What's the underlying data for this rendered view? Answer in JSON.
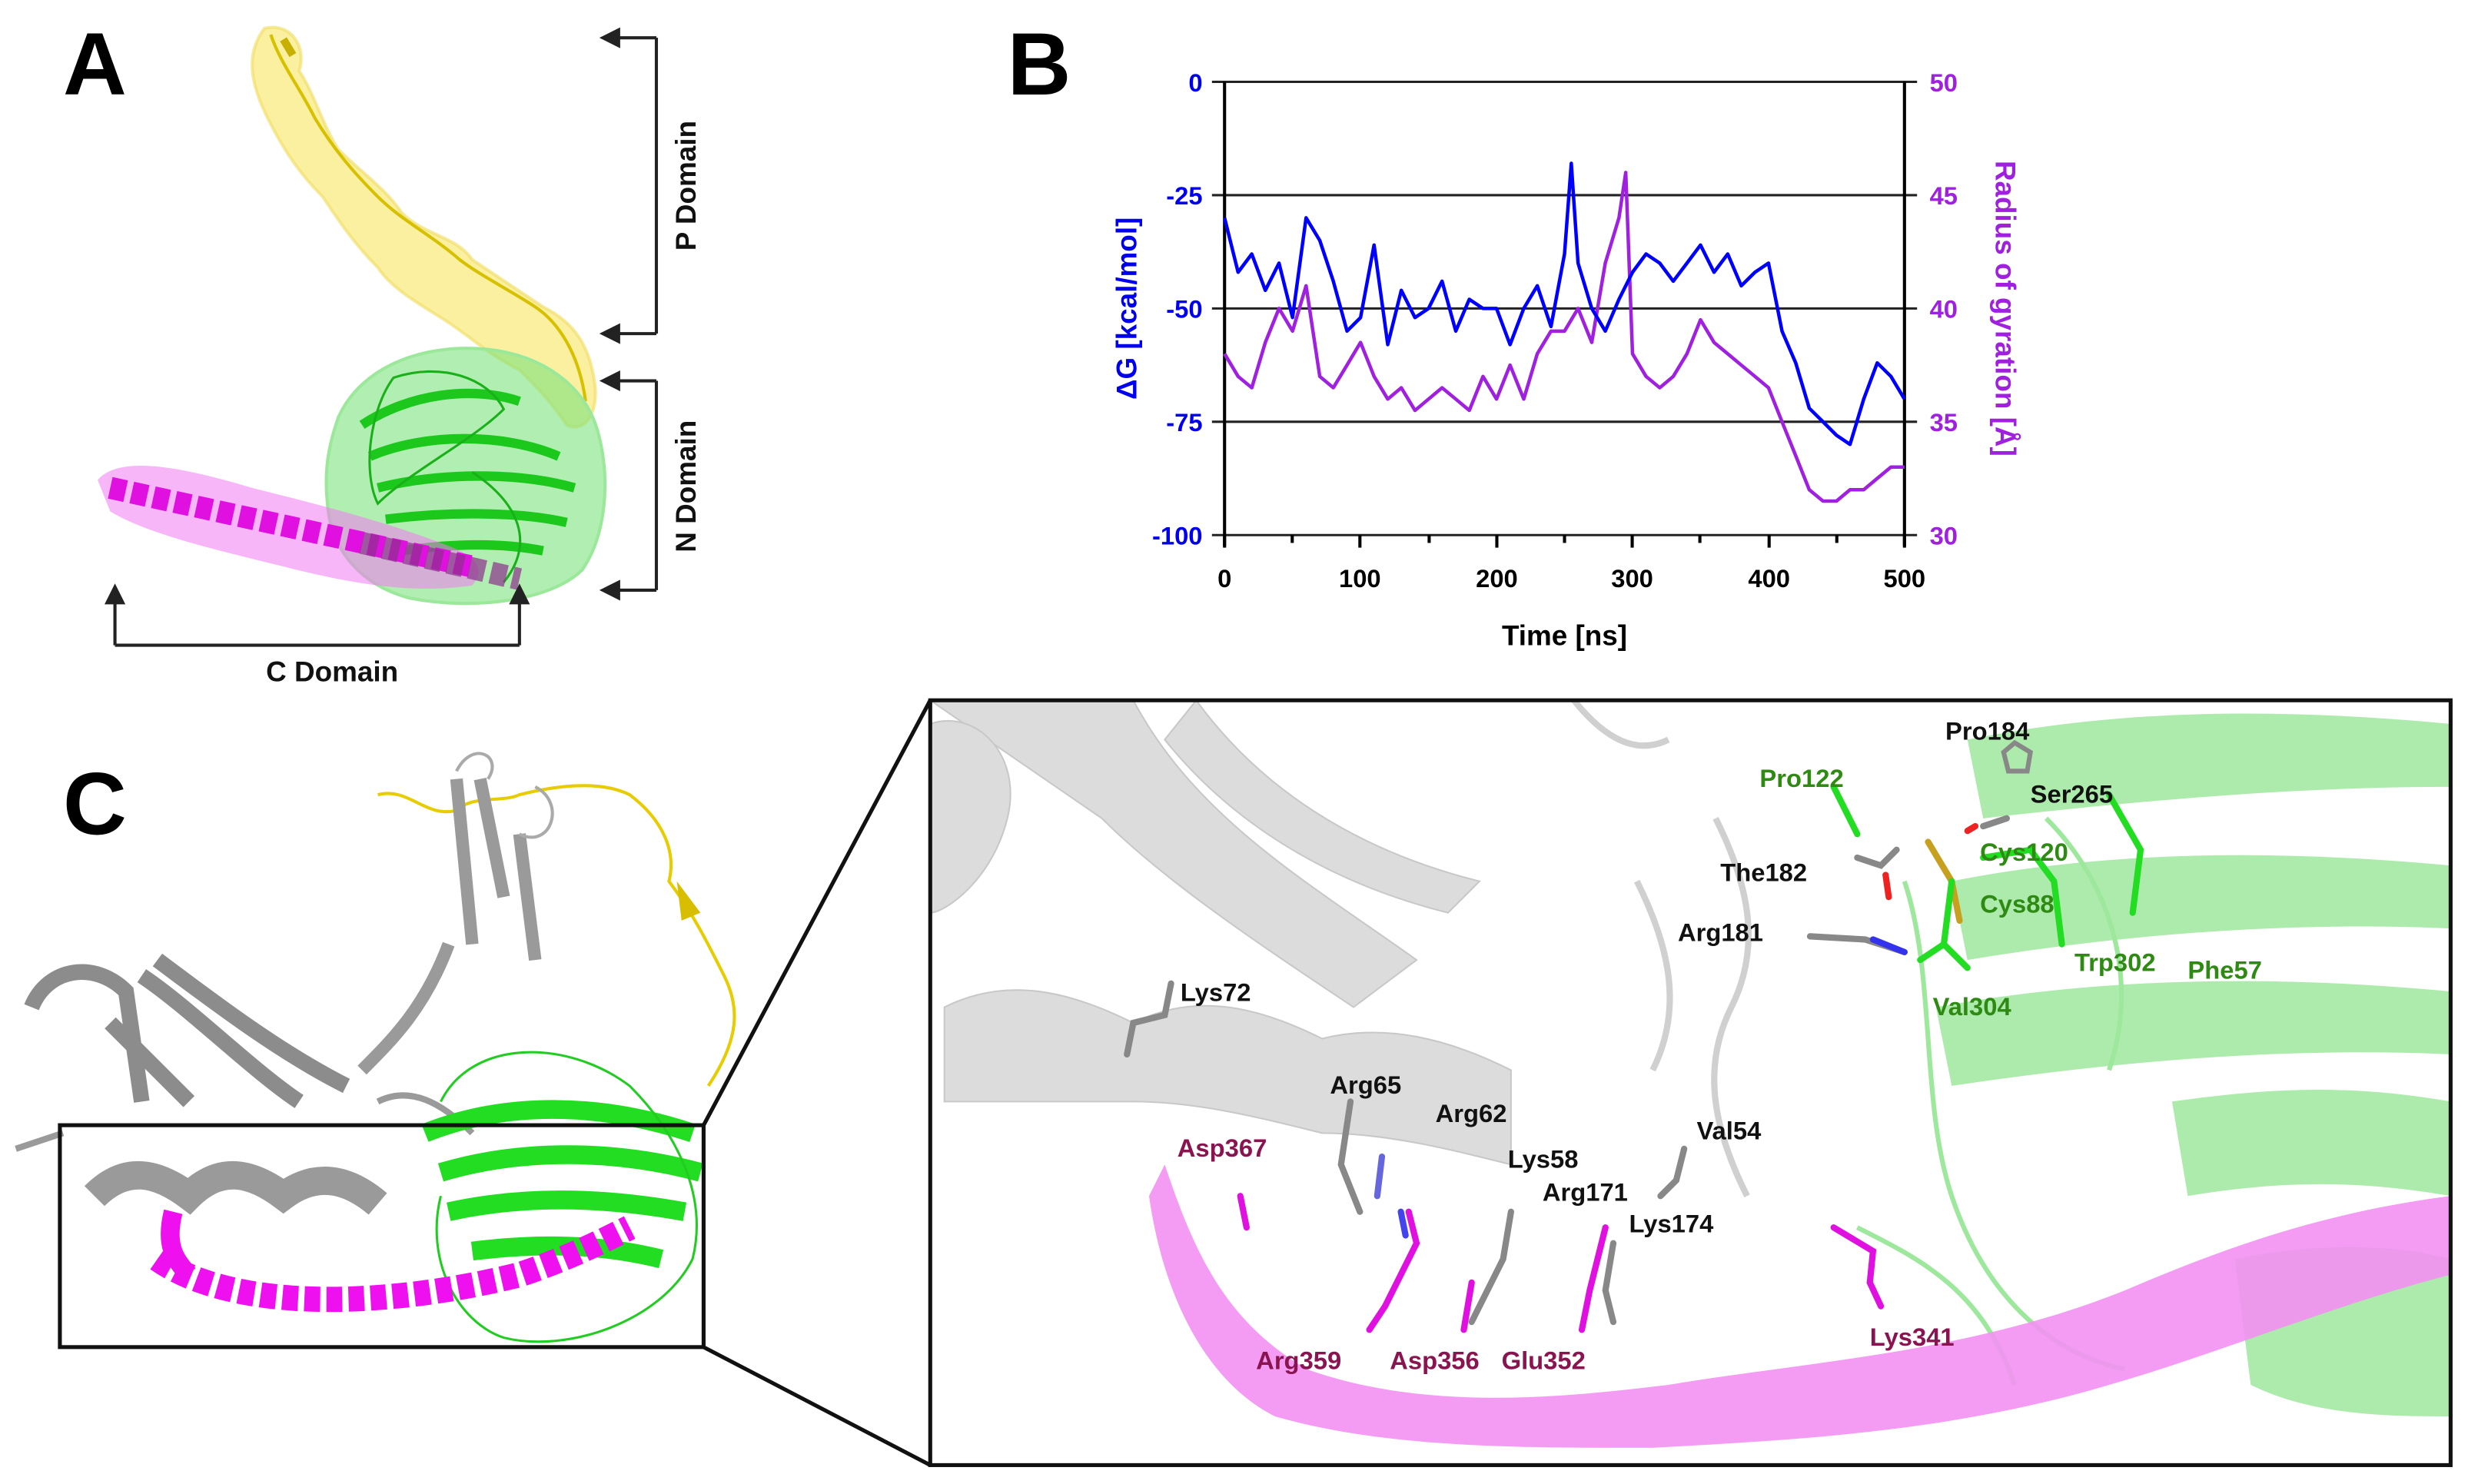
{
  "figure": {
    "panels": {
      "A": {
        "letter": "A",
        "domain_labels": {
          "p": "P Domain",
          "n": "N Domain",
          "c": "C Domain"
        }
      },
      "B": {
        "letter": "B"
      },
      "C": {
        "letter": "C",
        "residues": {
          "black": [
            "Pro184",
            "Ser265",
            "The182",
            "Arg181",
            "Lys72",
            "Arg65",
            "Arg62",
            "Val54",
            "Lys58",
            "Arg171",
            "Lys174"
          ],
          "green": [
            "Pro122",
            "Cys120",
            "Cys88",
            "Trp302",
            "Phe57",
            "Val304"
          ],
          "magenta": [
            "Asp367",
            "Arg359",
            "Asp356",
            "Glu352",
            "Lys341"
          ]
        }
      }
    },
    "colors": {
      "p_domain": "#f5e142",
      "n_domain": "#2ee02e",
      "c_domain": "#ee10ee",
      "other_chain": "#9a9a9a",
      "dG_line": "#0000ff",
      "rg_line": "#a020e0",
      "res_black": "#111111",
      "res_green": "#2e8a12",
      "res_magenta": "#8a1450"
    }
  },
  "chart_data": {
    "type": "line",
    "title": "",
    "xlabel": "Time [ns]",
    "ylabel": "ΔG [kcal/mol]",
    "y2label": "Radius of gyration [Å]",
    "xlim": [
      0,
      500
    ],
    "ylim": [
      -100,
      0
    ],
    "y2lim": [
      30,
      50
    ],
    "xticks": [
      0,
      100,
      200,
      300,
      400,
      500
    ],
    "yticks": [
      0,
      -25,
      -50,
      -75,
      -100
    ],
    "y2ticks": [
      50,
      45,
      40,
      35,
      30
    ],
    "grid": "horizontal at y-ticks",
    "legend": "none (axis colors identify series)",
    "series": [
      {
        "name": "ΔG",
        "axis": "left",
        "color": "#0000ff",
        "x": [
          0,
          10,
          20,
          30,
          40,
          50,
          60,
          70,
          80,
          90,
          100,
          110,
          120,
          130,
          140,
          150,
          160,
          170,
          180,
          190,
          200,
          210,
          220,
          230,
          240,
          250,
          255,
          260,
          270,
          280,
          290,
          300,
          310,
          320,
          330,
          340,
          350,
          360,
          370,
          380,
          390,
          400,
          410,
          420,
          430,
          440,
          450,
          460,
          470,
          480,
          490,
          500
        ],
        "values": [
          -30,
          -42,
          -38,
          -46,
          -40,
          -52,
          -30,
          -35,
          -44,
          -55,
          -52,
          -36,
          -58,
          -46,
          -52,
          -50,
          -44,
          -55,
          -48,
          -50,
          -50,
          -58,
          -50,
          -45,
          -54,
          -38,
          -18,
          -40,
          -50,
          -55,
          -48,
          -42,
          -38,
          -40,
          -44,
          -40,
          -36,
          -42,
          -38,
          -45,
          -42,
          -40,
          -55,
          -62,
          -72,
          -75,
          -78,
          -80,
          -70,
          -62,
          -65,
          -70
        ]
      },
      {
        "name": "Radius of gyration",
        "axis": "right",
        "color": "#a020e0",
        "x": [
          0,
          10,
          20,
          30,
          40,
          50,
          60,
          70,
          80,
          90,
          100,
          110,
          120,
          130,
          140,
          150,
          160,
          170,
          180,
          190,
          200,
          210,
          220,
          230,
          240,
          250,
          260,
          270,
          280,
          290,
          295,
          300,
          310,
          320,
          330,
          340,
          350,
          360,
          370,
          380,
          390,
          400,
          410,
          420,
          430,
          440,
          450,
          460,
          470,
          480,
          490,
          500
        ],
        "values": [
          38,
          37,
          36.5,
          38.5,
          40,
          39,
          41,
          37,
          36.5,
          37.5,
          38.5,
          37,
          36,
          36.5,
          35.5,
          36,
          36.5,
          36,
          35.5,
          37,
          36,
          37.5,
          36,
          38,
          39,
          39,
          40,
          38.5,
          42,
          44,
          46,
          38,
          37,
          36.5,
          37,
          38,
          39.5,
          38.5,
          38,
          37.5,
          37,
          36.5,
          35,
          33.5,
          32,
          31.5,
          31.5,
          32,
          32,
          32.5,
          33,
          33
        ]
      }
    ]
  }
}
